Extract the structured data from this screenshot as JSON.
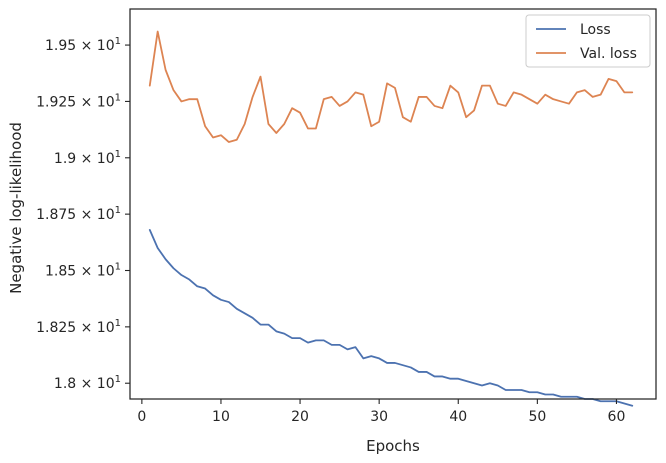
{
  "chart_data": {
    "type": "line",
    "xlabel": "Epochs",
    "ylabel": "Negative log-likelihood",
    "xlim": [
      -1.5,
      65
    ],
    "ylim": [
      17.93,
      19.66
    ],
    "xticks": [
      0,
      10,
      20,
      30,
      40,
      50,
      60
    ],
    "yticks": [
      {
        "value": 18.0,
        "mantissa": "1.8"
      },
      {
        "value": 18.25,
        "mantissa": "1.825"
      },
      {
        "value": 18.5,
        "mantissa": "1.85"
      },
      {
        "value": 18.75,
        "mantissa": "1.875"
      },
      {
        "value": 19.0,
        "mantissa": "1.9"
      },
      {
        "value": 19.25,
        "mantissa": "1.925"
      },
      {
        "value": 19.5,
        "mantissa": "1.95"
      }
    ],
    "ytick_suffix": "× 10",
    "ytick_exponent": "1",
    "grid": false,
    "legend_position": "top-right",
    "series": [
      {
        "name": "Loss",
        "color": "#4c72b0",
        "x": [
          1,
          2,
          3,
          4,
          5,
          6,
          7,
          8,
          9,
          10,
          11,
          12,
          13,
          14,
          15,
          16,
          17,
          18,
          19,
          20,
          21,
          22,
          23,
          24,
          25,
          26,
          27,
          28,
          29,
          30,
          31,
          32,
          33,
          34,
          35,
          36,
          37,
          38,
          39,
          40,
          41,
          42,
          43,
          44,
          45,
          46,
          47,
          48,
          49,
          50,
          51,
          52,
          53,
          54,
          55,
          56,
          57,
          58,
          59,
          60,
          61,
          62
        ],
        "values": [
          18.68,
          18.6,
          18.55,
          18.51,
          18.48,
          18.46,
          18.43,
          18.42,
          18.39,
          18.37,
          18.36,
          18.33,
          18.31,
          18.29,
          18.26,
          18.26,
          18.23,
          18.22,
          18.2,
          18.2,
          18.18,
          18.19,
          18.19,
          18.17,
          18.17,
          18.15,
          18.16,
          18.11,
          18.12,
          18.11,
          18.09,
          18.09,
          18.08,
          18.07,
          18.05,
          18.05,
          18.03,
          18.03,
          18.02,
          18.02,
          18.01,
          18.0,
          17.99,
          18.0,
          17.99,
          17.97,
          17.97,
          17.97,
          17.96,
          17.96,
          17.95,
          17.95,
          17.94,
          17.94,
          17.94,
          17.93,
          17.93,
          17.92,
          17.92,
          17.92,
          17.91,
          17.9
        ]
      },
      {
        "name": "Val. loss",
        "color": "#dd8452",
        "x": [
          1,
          2,
          3,
          4,
          5,
          6,
          7,
          8,
          9,
          10,
          11,
          12,
          13,
          14,
          15,
          16,
          17,
          18,
          19,
          20,
          21,
          22,
          23,
          24,
          25,
          26,
          27,
          28,
          29,
          30,
          31,
          32,
          33,
          34,
          35,
          36,
          37,
          38,
          39,
          40,
          41,
          42,
          43,
          44,
          45,
          46,
          47,
          48,
          49,
          50,
          51,
          52,
          53,
          54,
          55,
          56,
          57,
          58,
          59,
          60,
          61,
          62
        ],
        "values": [
          19.32,
          19.56,
          19.39,
          19.3,
          19.25,
          19.26,
          19.26,
          19.14,
          19.09,
          19.1,
          19.07,
          19.08,
          19.15,
          19.27,
          19.36,
          19.15,
          19.11,
          19.15,
          19.22,
          19.2,
          19.13,
          19.13,
          19.26,
          19.27,
          19.23,
          19.25,
          19.29,
          19.28,
          19.14,
          19.16,
          19.33,
          19.31,
          19.18,
          19.16,
          19.27,
          19.27,
          19.23,
          19.22,
          19.32,
          19.29,
          19.18,
          19.21,
          19.32,
          19.32,
          19.24,
          19.23,
          19.29,
          19.28,
          19.26,
          19.24,
          19.28,
          19.26,
          19.25,
          19.24,
          19.29,
          19.3,
          19.27,
          19.28,
          19.35,
          19.34,
          19.29,
          19.29
        ]
      }
    ]
  }
}
